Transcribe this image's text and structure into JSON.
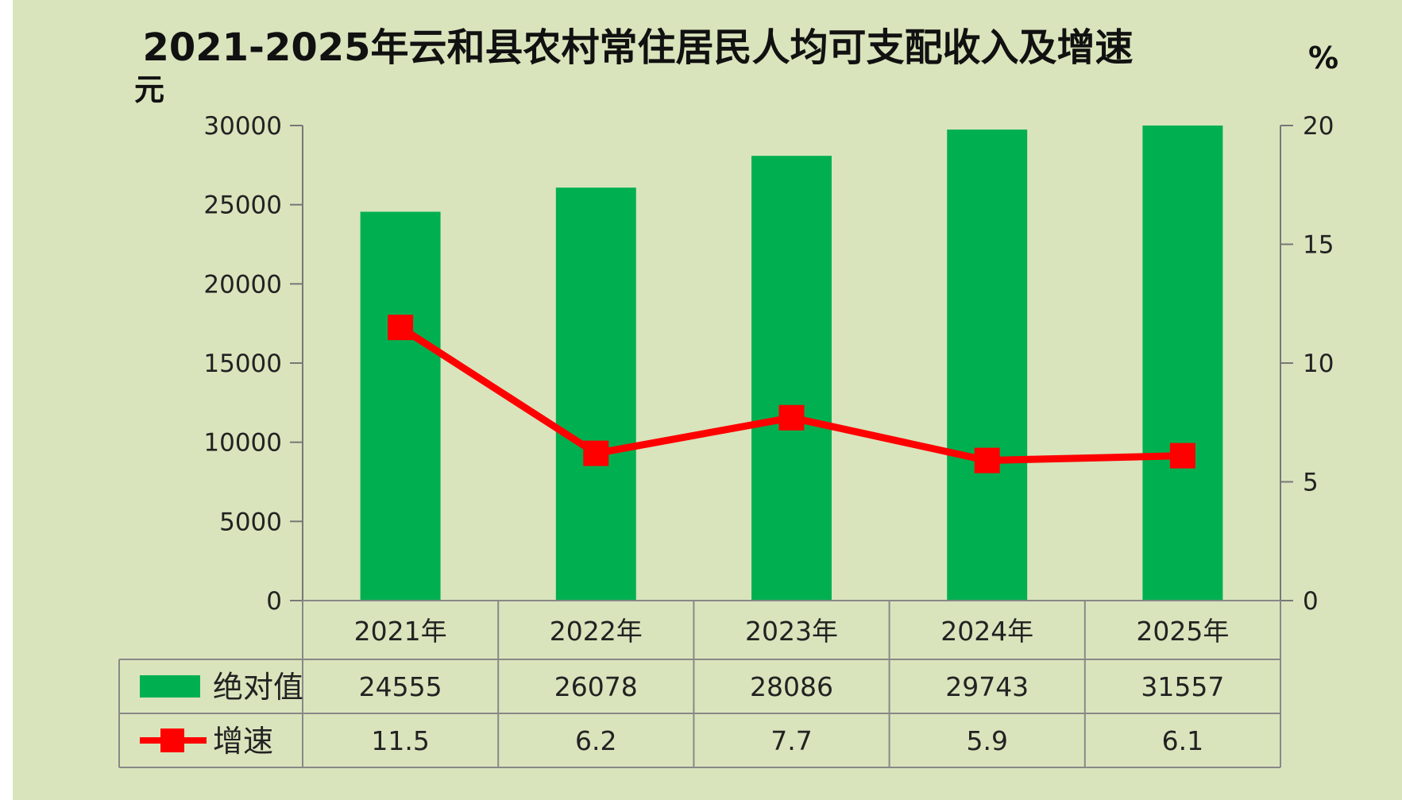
{
  "chart_data": {
    "type": "bar",
    "title": "2021-2025年云和县农村常住居民人均可支配收入及增速",
    "categories": [
      "2021年",
      "2022年",
      "2023年",
      "2024年",
      "2025年"
    ],
    "series": [
      {
        "name": "绝对值",
        "type": "bar",
        "axis": "left",
        "color": "#00b050",
        "values": [
          24555,
          26078,
          28086,
          29743,
          31557
        ]
      },
      {
        "name": "增速",
        "type": "line",
        "axis": "right",
        "color": "#ff0000",
        "values": [
          11.5,
          6.2,
          7.7,
          5.9,
          6.1
        ]
      }
    ],
    "y_left": {
      "unit": "元",
      "min": 0,
      "max": 30000,
      "ticks": [
        0,
        5000,
        10000,
        15000,
        20000,
        25000,
        30000
      ]
    },
    "y_right": {
      "unit": "%",
      "min": 0,
      "max": 20,
      "ticks": [
        0,
        5,
        10,
        15,
        20
      ]
    },
    "data_table": true,
    "grid": false,
    "legend": "data-table-left"
  }
}
